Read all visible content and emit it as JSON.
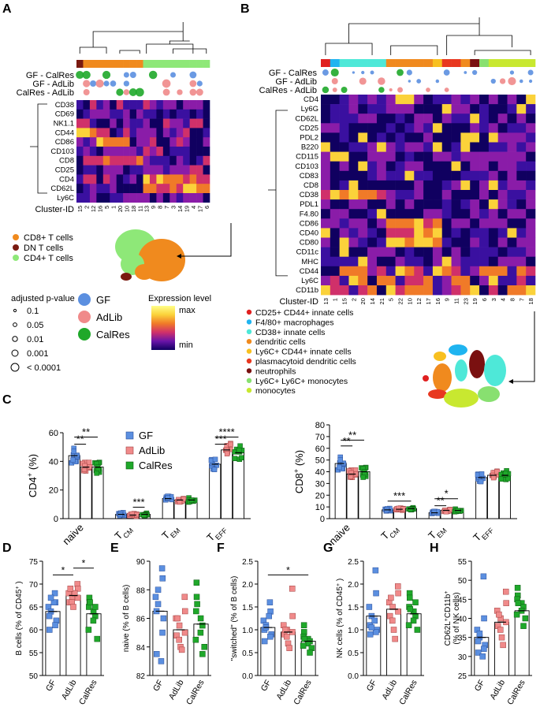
{
  "colors": {
    "GF": "#5b8fe0",
    "AdLib": "#f08a8a",
    "CalRes": "#1fa82a",
    "cd8": "#f08a1e",
    "dn": "#7a1a10",
    "cd4": "#8ee878",
    "scale": [
      "#100060",
      "#3a10a0",
      "#8a1ca8",
      "#d0306a",
      "#f07a28",
      "#fbd23a",
      "#ffff88"
    ]
  },
  "panelA": {
    "letter": "A",
    "comparisons": [
      "GF - CalRes",
      "GF - AdLib",
      "CalRes - AdLib"
    ],
    "markers": [
      "CD38",
      "CD69",
      "NK1.1",
      "CD44",
      "CD86",
      "CD103",
      "CD8",
      "CD25",
      "CD4",
      "CD62L",
      "Ly6C"
    ],
    "cluster_label": "Cluster-ID",
    "cluster_ids": [
      "15",
      "2",
      "12",
      "16",
      "5",
      "1",
      "20",
      "10",
      "18",
      "11",
      "13",
      "9",
      "8",
      "7",
      "3",
      "14",
      "19",
      "4",
      "17",
      "6"
    ],
    "legend": [
      {
        "label": "CD8+ T cells",
        "color": "#f08a1e"
      },
      {
        "label": "DN T cells",
        "color": "#7a1a10"
      },
      {
        "label": "CD4+ T cells",
        "color": "#8ee878"
      }
    ]
  },
  "panelB": {
    "letter": "B",
    "comparisons": [
      "GF - CalRes",
      "GF - AdLib",
      "CalRes - AdLib"
    ],
    "markers": [
      "CD4",
      "Ly6G",
      "CD62L",
      "CD25",
      "PDL2",
      "B220",
      "CD115",
      "CD103",
      "CD83",
      "CD8",
      "CD38",
      "PDL1",
      "F4.80",
      "CD86",
      "CD40",
      "CD80",
      "CD11c",
      "MHC",
      "CD44",
      "Ly6C",
      "CD11b"
    ],
    "cluster_label": "Cluster-ID",
    "cluster_ids": [
      "13",
      "1",
      "15",
      "2",
      "20",
      "14",
      "21",
      "5",
      "22",
      "10",
      "12",
      "17",
      "16",
      "9",
      "11",
      "23",
      "19",
      "6",
      "3",
      "4",
      "8",
      "7",
      "18"
    ],
    "legend": [
      {
        "label": "CD25+ CD44+ innate cells",
        "color": "#e02020"
      },
      {
        "label": "F4/80+ macrophages",
        "color": "#1fb4f0"
      },
      {
        "label": "CD38+ innate cells",
        "color": "#4ee8d8"
      },
      {
        "label": "dendritic cells",
        "color": "#f08a1e"
      },
      {
        "label": "Ly6C+ CD44+ innate cells",
        "color": "#f8c020"
      },
      {
        "label": "plasmacytoid dendritic cells",
        "color": "#e83820"
      },
      {
        "label": "neutrophils",
        "color": "#7a1010"
      },
      {
        "label": "Ly6C+ Ly6C+ monocytes",
        "color": "#88e070"
      },
      {
        "label": "monocytes",
        "color": "#c8e830"
      }
    ]
  },
  "pvalue_legend": {
    "title": "adjusted p-value",
    "items": [
      "0.1",
      "0.05",
      "0.01",
      "0.001",
      "< 0.0001"
    ]
  },
  "group_legend": [
    "GF",
    "AdLib",
    "CalRes"
  ],
  "expression_legend": {
    "title": "Expression level",
    "max": "max",
    "min": "min"
  },
  "chart_data": [
    {
      "id": "C-left",
      "letter": "C",
      "type": "bar",
      "ylabel": "CD4",
      "ylabel_sup": "+",
      "ylabel_unit": "(%)",
      "ylim": [
        0,
        60
      ],
      "yticks": [
        "0",
        "20",
        "40",
        "60"
      ],
      "tick_vals": [
        0,
        20,
        40,
        60
      ],
      "categories": [
        "naive",
        "T",
        "T",
        "T"
      ],
      "category_subs": [
        "",
        "CM",
        "EM",
        "EFF"
      ],
      "series": [
        {
          "name": "GF",
          "values": [
            44,
            3,
            14,
            38
          ]
        },
        {
          "name": "AdLib",
          "values": [
            36,
            2.5,
            13,
            48
          ]
        },
        {
          "name": "CalRes",
          "values": [
            36,
            3,
            13,
            46
          ]
        }
      ],
      "significance": [
        {
          "label": "**",
          "cat": 0,
          "from": 0,
          "to": 2,
          "y": 57
        },
        {
          "label": "**",
          "cat": 0,
          "from": 0,
          "to": 1,
          "y": 52
        },
        {
          "label": "***",
          "cat": 1,
          "from": 1,
          "to": 2,
          "y": 8
        },
        {
          "label": "****",
          "cat": 3,
          "from": 0,
          "to": 2,
          "y": 57
        },
        {
          "label": "***",
          "cat": 3,
          "from": 0,
          "to": 1,
          "y": 52
        }
      ]
    },
    {
      "id": "C-right",
      "type": "bar",
      "ylabel": "CD8",
      "ylabel_sup": "+",
      "ylabel_unit": "(%)",
      "ylim": [
        0,
        80
      ],
      "yticks": [
        "0",
        "10",
        "20",
        "30",
        "40",
        "50",
        "60",
        "70",
        "80"
      ],
      "tick_vals": [
        0,
        10,
        20,
        30,
        40,
        50,
        60,
        70,
        80
      ],
      "categories": [
        "naive",
        "T",
        "T",
        "T"
      ],
      "category_subs": [
        "",
        "CM",
        "EM",
        "EFF"
      ],
      "series": [
        {
          "name": "GF",
          "values": [
            47,
            7.5,
            5,
            35
          ]
        },
        {
          "name": "AdLib",
          "values": [
            38,
            8,
            7,
            37
          ]
        },
        {
          "name": "CalRes",
          "values": [
            40,
            8.5,
            7,
            37
          ]
        }
      ],
      "significance": [
        {
          "label": "**",
          "cat": 0,
          "from": 0,
          "to": 2,
          "y": 67
        },
        {
          "label": "**",
          "cat": 0,
          "from": 0,
          "to": 1,
          "y": 62
        },
        {
          "label": "***",
          "cat": 1,
          "from": 0,
          "to": 2,
          "y": 15
        },
        {
          "label": "*",
          "cat": 2,
          "from": 0,
          "to": 2,
          "y": 17
        },
        {
          "label": "**",
          "cat": 2,
          "from": 0,
          "to": 1,
          "y": 11
        }
      ]
    },
    {
      "id": "D",
      "letter": "D",
      "type": "bar",
      "ylabel": "B cells (% of CD45",
      "ylabel_sup": "+",
      "ylabel_unit": ")",
      "ylim": [
        50,
        75
      ],
      "yticks": [
        "50",
        "55",
        "60",
        "65",
        "70",
        "75"
      ],
      "tick_vals": [
        50,
        55,
        60,
        65,
        70,
        75
      ],
      "categories": [
        "GF",
        "AdLib",
        "CalRes"
      ],
      "values": [
        64,
        67.5,
        63.5
      ],
      "points": [
        [
          68,
          66,
          65,
          64,
          63,
          62,
          61,
          60,
          66,
          67
        ],
        [
          70,
          69,
          68,
          67,
          67,
          66,
          66,
          65,
          68,
          69
        ],
        [
          67,
          66,
          65,
          64,
          63,
          62,
          60,
          58,
          65,
          66
        ]
      ],
      "significance": [
        {
          "label": "*",
          "from": 0,
          "to": 1,
          "y": 72
        },
        {
          "label": "*",
          "from": 1,
          "to": 2,
          "y": 73.5
        }
      ]
    },
    {
      "id": "E",
      "letter": "E",
      "type": "bar",
      "ylabel": "naive (% of B cells)",
      "ylabel_sup": "",
      "ylabel_unit": "",
      "ylim": [
        82,
        90
      ],
      "yticks": [
        "82",
        "84",
        "86",
        "88",
        "90"
      ],
      "tick_vals": [
        82,
        84,
        86,
        88,
        90
      ],
      "categories": [
        "GF",
        "AdLib",
        "CalRes"
      ],
      "values": [
        86.5,
        85.2,
        85.6
      ],
      "points": [
        [
          89.5,
          88.8,
          87.5,
          87,
          86.5,
          86,
          85,
          83.5,
          83,
          88
        ],
        [
          87.5,
          86.5,
          86,
          85.5,
          85,
          84.8,
          84.5,
          84,
          83.8,
          86
        ],
        [
          88.5,
          87.5,
          86.5,
          86,
          85.5,
          85,
          84.5,
          84,
          83.5,
          87
        ]
      ],
      "significance": []
    },
    {
      "id": "F",
      "letter": "F",
      "type": "bar",
      "ylabel": "\"switched\" (% of B cells)",
      "ylabel_sup": "",
      "ylabel_unit": "",
      "ylim": [
        0,
        2.5
      ],
      "yticks": [
        "0.0",
        "0.5",
        "1.0",
        "1.5",
        "2.0",
        "2.5"
      ],
      "tick_vals": [
        0,
        0.5,
        1,
        1.5,
        2,
        2.5
      ],
      "categories": [
        "GF",
        "AdLib",
        "CalRes"
      ],
      "values": [
        1.05,
        0.95,
        0.75
      ],
      "points": [
        [
          1.6,
          1.4,
          1.2,
          1.1,
          1.0,
          0.9,
          0.85,
          0.75,
          1.3,
          1.05
        ],
        [
          1.9,
          1.3,
          1.1,
          1.0,
          0.95,
          0.9,
          0.85,
          0.7,
          0.6,
          1.0
        ],
        [
          1.1,
          0.95,
          0.85,
          0.8,
          0.75,
          0.7,
          0.65,
          0.6,
          0.5,
          0.8
        ]
      ],
      "significance": [
        {
          "label": "*",
          "from": 0,
          "to": 2,
          "y": 2.2
        }
      ]
    },
    {
      "id": "G",
      "letter": "G",
      "type": "bar",
      "ylabel": "NK cells (% of CD45",
      "ylabel_sup": "+",
      "ylabel_unit": ")",
      "ylim": [
        0,
        2.5
      ],
      "yticks": [
        "0.0",
        "0.5",
        "1.0",
        "1.5",
        "2.0",
        "2.5"
      ],
      "tick_vals": [
        0,
        0.5,
        1,
        1.5,
        2,
        2.5
      ],
      "categories": [
        "GF",
        "AdLib",
        "CalRes"
      ],
      "values": [
        1.3,
        1.45,
        1.35
      ],
      "points": [
        [
          2.3,
          1.8,
          1.5,
          1.3,
          1.1,
          1.0,
          0.95,
          0.9,
          1.2,
          1.05
        ],
        [
          1.95,
          1.8,
          1.6,
          1.5,
          1.4,
          1.3,
          1.2,
          1.0,
          0.8,
          1.7
        ],
        [
          1.8,
          1.7,
          1.5,
          1.4,
          1.3,
          1.2,
          1.1,
          1.0,
          1.6,
          1.45
        ]
      ],
      "significance": []
    },
    {
      "id": "H",
      "letter": "H",
      "type": "bar",
      "ylabel": "CD62L",
      "ylabel_sup": "+",
      "ylabel_mid": "CD11b",
      "ylabel_sup2": "+",
      "ylabel_line2": "(% of NK cells)",
      "ylim": [
        25,
        55
      ],
      "yticks": [
        "25",
        "30",
        "35",
        "40",
        "45",
        "50",
        "55"
      ],
      "tick_vals": [
        25,
        30,
        35,
        40,
        45,
        50,
        55
      ],
      "categories": [
        "GF",
        "AdLib",
        "CalRes"
      ],
      "values": [
        35,
        39,
        42
      ],
      "points": [
        [
          51,
          40,
          37,
          35,
          34,
          33,
          32,
          31,
          30,
          36
        ],
        [
          47,
          44,
          42,
          40,
          39,
          38,
          37,
          35,
          33,
          41
        ],
        [
          48,
          46,
          45,
          44,
          43,
          42,
          41,
          40,
          38,
          44
        ]
      ],
      "significance": []
    }
  ]
}
